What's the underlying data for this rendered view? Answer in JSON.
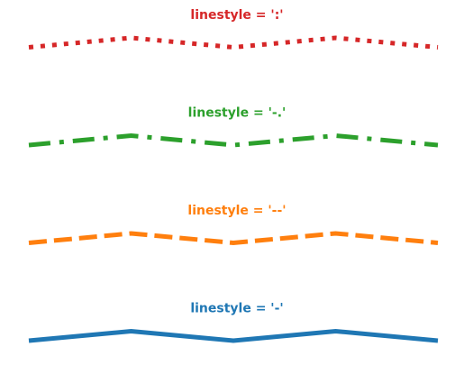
{
  "chart_data": {
    "type": "line",
    "x": [
      0,
      1,
      2,
      3,
      4
    ],
    "y": [
      0,
      1,
      0,
      1,
      0
    ],
    "panels": [
      {
        "title": "linestyle = ':'",
        "linestyle": ":",
        "color": "#d62728",
        "values": [
          0,
          1,
          0,
          1,
          0
        ]
      },
      {
        "title": "linestyle = '-.'",
        "linestyle": "-.",
        "color": "#2ca02c",
        "values": [
          0,
          1,
          0,
          1,
          0
        ]
      },
      {
        "title": "linestyle = '--'",
        "linestyle": "--",
        "color": "#ff7f0e",
        "values": [
          0,
          1,
          0,
          1,
          0
        ]
      },
      {
        "title": "linestyle = '-'",
        "linestyle": "-",
        "color": "#1f77b4",
        "values": [
          0,
          1,
          0,
          1,
          0
        ]
      }
    ],
    "axes_visible": false,
    "grid": false
  }
}
